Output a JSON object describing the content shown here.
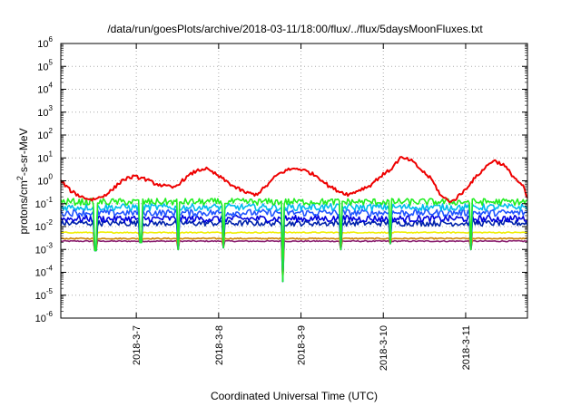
{
  "chart_data": {
    "type": "line",
    "title": "/data/run/goesPlots/archive/2018-03-11/18:00/flux/../flux/5daysMoonFluxes.txt",
    "xlabel": "Coordinated Universal Time (UTC)",
    "ylabel": "protons/cm²-s-sr-MeV",
    "y_scale": "log",
    "ylim": [
      1e-06,
      1000000.0
    ],
    "y_ticks": [
      {
        "base": "10",
        "exp": "-6"
      },
      {
        "base": "10",
        "exp": "-5"
      },
      {
        "base": "10",
        "exp": "-4"
      },
      {
        "base": "10",
        "exp": "-3"
      },
      {
        "base": "10",
        "exp": "-2"
      },
      {
        "base": "10",
        "exp": "-1"
      },
      {
        "base": "10",
        "exp": "0"
      },
      {
        "base": "10",
        "exp": "1"
      },
      {
        "base": "10",
        "exp": "2"
      },
      {
        "base": "10",
        "exp": "3"
      },
      {
        "base": "10",
        "exp": "4"
      },
      {
        "base": "10",
        "exp": "5"
      },
      {
        "base": "10",
        "exp": "6"
      }
    ],
    "x_range": [
      "2018-03-06 02:00",
      "2018-03-11 18:00"
    ],
    "x_ticks": [
      "2018-3-7",
      "2018-3-8",
      "2018-3-9",
      "2018-3-10",
      "2018-3-11"
    ],
    "grid": true,
    "colors": {
      "red": "#ee0000",
      "green": "#22ee22",
      "cyan": "#00bbee",
      "blue1": "#2255ff",
      "blue2": "#0000dd",
      "blue3": "#0022aa",
      "yellow": "#eeee00",
      "orange": "#cc8800",
      "purple": "#8b2070"
    },
    "series": [
      {
        "color": "red",
        "baseline": 0.5,
        "noise": 0.15,
        "x": [
          0,
          0.125,
          0.25,
          0.375,
          0.5,
          0.625,
          0.75,
          0.875,
          1.0,
          1.125,
          1.25,
          1.375,
          1.5,
          1.625,
          1.75,
          1.875,
          2.0,
          2.125,
          2.25,
          2.375,
          2.5,
          2.625,
          2.75,
          2.875,
          3.0,
          3.125,
          3.25,
          3.375,
          3.5,
          3.625,
          3.75,
          3.875,
          4.0,
          4.125,
          4.25,
          4.375,
          4.5,
          4.625,
          4.75,
          4.875,
          5.0,
          5.125,
          5.25,
          5.375,
          5.5,
          5.625,
          5.667
        ],
        "y": [
          1.0,
          0.35,
          0.2,
          0.15,
          0.2,
          0.4,
          1.1,
          1.5,
          1.3,
          0.8,
          0.6,
          0.5,
          1.2,
          2.5,
          3.5,
          2.0,
          1.0,
          0.5,
          0.3,
          0.25,
          0.6,
          1.8,
          3.0,
          3.5,
          2.5,
          1.5,
          0.6,
          0.35,
          0.25,
          0.4,
          0.6,
          1.5,
          3.0,
          10.0,
          8.0,
          3.0,
          1.2,
          0.2,
          0.12,
          0.3,
          1.0,
          3.0,
          8.0,
          5.0,
          1.5,
          0.5,
          0.15
        ]
      },
      {
        "color": "green",
        "baseline": 0.12,
        "noise": 0.3,
        "x": [
          0,
          5.667
        ],
        "y": [
          0.12,
          0.12
        ]
      },
      {
        "color": "cyan",
        "baseline": 0.07,
        "noise": 0.3,
        "x": [
          0,
          5.667
        ],
        "y": [
          0.07,
          0.07
        ]
      },
      {
        "color": "blue1",
        "baseline": 0.04,
        "noise": 0.3,
        "x": [
          0,
          5.667
        ],
        "y": [
          0.04,
          0.04
        ]
      },
      {
        "color": "blue2",
        "baseline": 0.022,
        "noise": 0.3,
        "x": [
          0,
          5.667
        ],
        "y": [
          0.022,
          0.022
        ]
      },
      {
        "color": "blue3",
        "baseline": 0.014,
        "noise": 0.25,
        "x": [
          0,
          5.667
        ],
        "y": [
          0.014,
          0.014
        ]
      },
      {
        "color": "yellow",
        "baseline": 0.0055,
        "noise": 0.05,
        "x": [
          0,
          5.667
        ],
        "y": [
          0.0055,
          0.0055
        ]
      },
      {
        "color": "orange",
        "baseline": 0.003,
        "noise": 0.05,
        "x": [
          0,
          5.667
        ],
        "y": [
          0.003,
          0.003
        ]
      },
      {
        "color": "purple",
        "baseline": 0.0023,
        "noise": 0.05,
        "x": [
          0,
          5.667
        ],
        "y": [
          0.0023,
          0.0023
        ]
      }
    ],
    "dips": [
      {
        "x": 0.42,
        "y": 0.0009
      },
      {
        "x": 0.97,
        "y": 0.002
      },
      {
        "x": 1.43,
        "y": 0.001
      },
      {
        "x": 1.97,
        "y": 0.0012
      },
      {
        "x": 2.7,
        "y": 4e-05
      },
      {
        "x": 3.4,
        "y": 0.001
      },
      {
        "x": 4.0,
        "y": 0.0018
      },
      {
        "x": 4.98,
        "y": 0.001
      }
    ]
  }
}
